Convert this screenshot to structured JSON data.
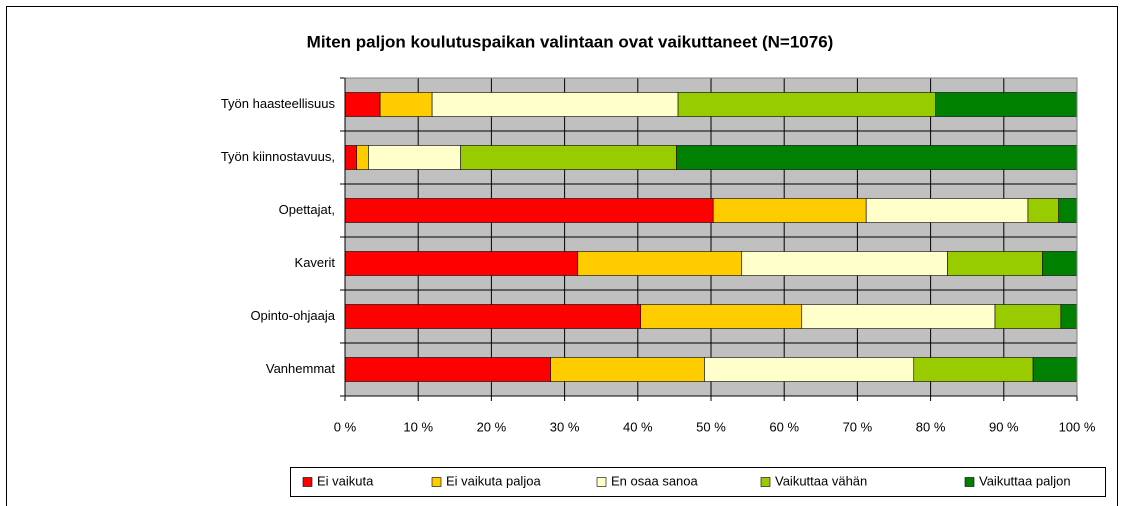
{
  "chart_data": {
    "type": "stacked_barh",
    "title": "Miten paljon koulutuspaikan valintaan ovat vaikuttaneet (N=1076)",
    "categories": [
      "Työn haasteellisuus",
      "Työn kiinnostavuus,",
      "Opettajat,",
      "Kaverit",
      "Opinto-ohjaaja",
      "Vanhemmat"
    ],
    "series": [
      {
        "name": "Ei vaikuta",
        "color": "#ff0000",
        "values": [
          4.8,
          1.6,
          50.3,
          31.8,
          40.4,
          28.1
        ]
      },
      {
        "name": "Ei vaikuta paljoa",
        "color": "#ffcc00",
        "values": [
          7.1,
          1.6,
          20.9,
          22.4,
          22.0,
          21.0
        ]
      },
      {
        "name": "En osaa sanoa",
        "color": "#ffffcc",
        "values": [
          33.6,
          12.6,
          22.1,
          28.1,
          26.4,
          28.6
        ]
      },
      {
        "name": "Vaikuttaa vähän",
        "color": "#99cc00",
        "values": [
          35.2,
          29.5,
          4.2,
          13.0,
          9.0,
          16.3
        ]
      },
      {
        "name": "Vaikuttaa paljon",
        "color": "#008000",
        "values": [
          19.3,
          54.7,
          2.5,
          4.7,
          2.2,
          6.0
        ]
      }
    ],
    "xlim": [
      0,
      100
    ],
    "xticks": [
      {
        "value": 0,
        "label": "0 %"
      },
      {
        "value": 10,
        "label": "10 %"
      },
      {
        "value": 20,
        "label": "20 %"
      },
      {
        "value": 30,
        "label": "30 %"
      },
      {
        "value": 40,
        "label": "40 %"
      },
      {
        "value": 50,
        "label": "50 %"
      },
      {
        "value": 60,
        "label": "60 %"
      },
      {
        "value": 70,
        "label": "70 %"
      },
      {
        "value": 80,
        "label": "80 %"
      },
      {
        "value": 90,
        "label": "90 %"
      },
      {
        "value": 100,
        "label": "100 %"
      }
    ],
    "grid": true,
    "legend": "bottom"
  }
}
